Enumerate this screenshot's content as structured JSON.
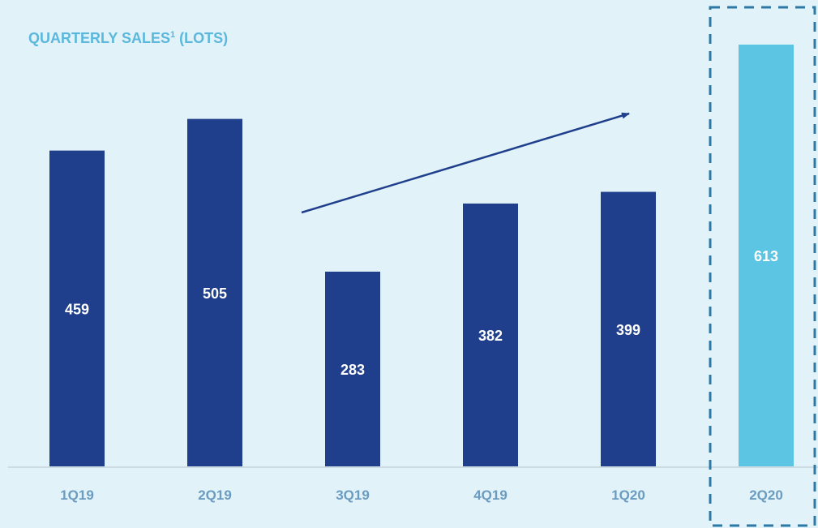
{
  "chart_data": {
    "type": "bar",
    "title": "QUARTERLY SALES",
    "title_footnote": "1",
    "title_suffix": "(LOTS)",
    "categories": [
      "1Q19",
      "2Q19",
      "3Q19",
      "4Q19",
      "1Q20",
      "2Q20"
    ],
    "values": [
      459,
      505,
      283,
      382,
      399,
      613
    ],
    "colors": [
      "#1f3f8c",
      "#1f3f8c",
      "#1f3f8c",
      "#1f3f8c",
      "#1f3f8c",
      "#5bc5e3"
    ]
  }
}
